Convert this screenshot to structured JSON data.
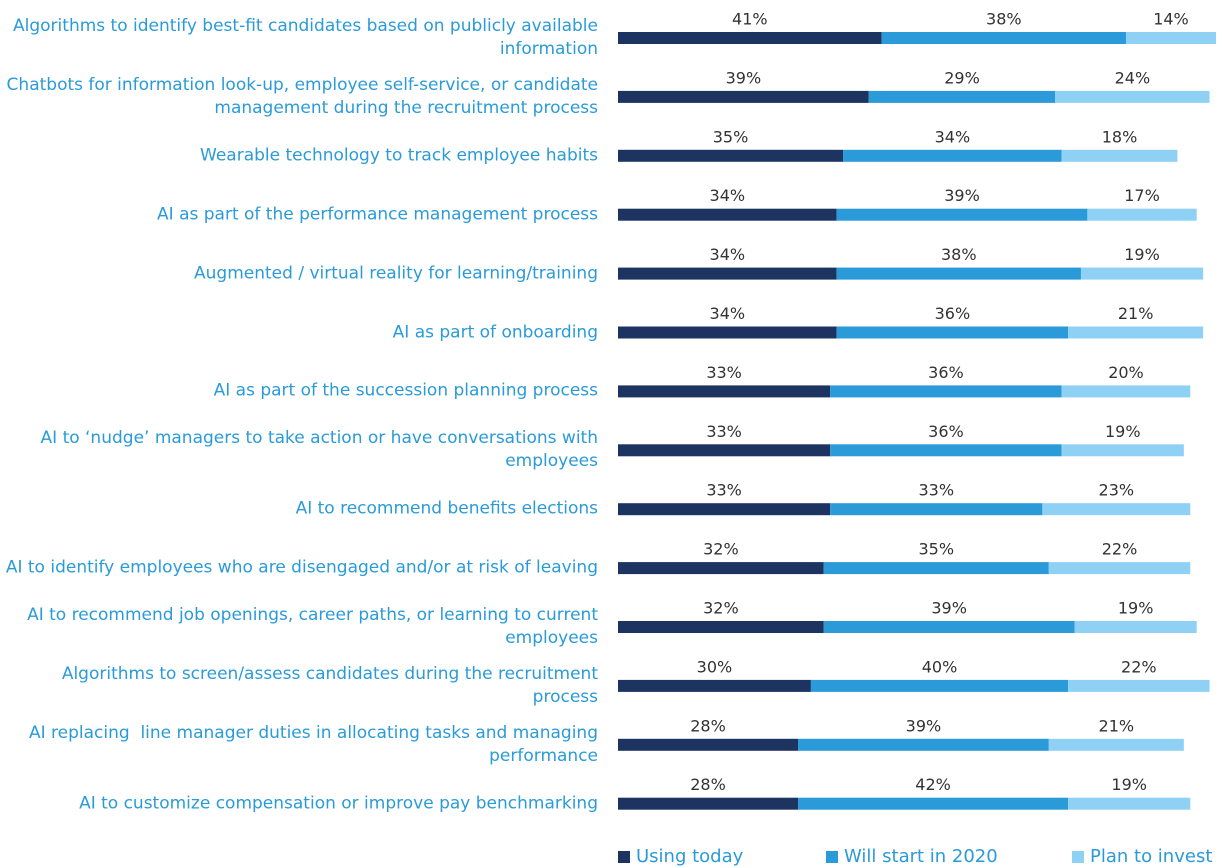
{
  "chart_data": {
    "type": "stacked-bar-horizontal",
    "categories": [
      "Algorithms to identify best-fit candidates based on publicly available information",
      "Chatbots for information look-up, employee self-service, or candidate management during the recruitment process",
      "Wearable technology to track employee habits",
      "AI as part of the performance management process",
      "Augmented / virtual reality for learning/training",
      "AI as part of onboarding",
      "AI as part of the succession planning process",
      "AI to ‘nudge’ managers to take action or have conversations with employees",
      "AI to recommend benefits elections",
      "AI to identify employees who are disengaged and/or at risk of leaving",
      "AI to recommend job openings, career paths, or learning to current employees",
      "Algorithms to screen/assess candidates during the recruitment process",
      "AI replacing  line manager duties in allocating tasks and managing performance",
      "AI to customize compensation or improve pay benchmarking"
    ],
    "series": [
      {
        "name": "Using today",
        "color": "#1d3461",
        "values": [
          41,
          39,
          35,
          34,
          34,
          34,
          33,
          33,
          33,
          32,
          32,
          30,
          28,
          28
        ],
        "value_labels": [
          "41%",
          "39%",
          "35%",
          "34%",
          "34%",
          "34%",
          "33%",
          "33%",
          "33%",
          "32%",
          "32%",
          "30%",
          "28%",
          "28%"
        ]
      },
      {
        "name": "Will start in 2020",
        "color": "#2a9bd8",
        "values": [
          38,
          29,
          34,
          39,
          38,
          36,
          36,
          36,
          33,
          35,
          39,
          40,
          39,
          42
        ],
        "value_labels": [
          "38%",
          "29%",
          "34%",
          "39%",
          "38%",
          "36%",
          "36%",
          "36%",
          "33%",
          "35%",
          "39%",
          "40%",
          "39%",
          "42%"
        ]
      },
      {
        "name": "Plan to invest",
        "color": "#8fd1f4",
        "values": [
          14,
          24,
          18,
          17,
          19,
          21,
          20,
          19,
          23,
          22,
          19,
          22,
          21,
          19
        ],
        "value_labels": [
          "14%",
          "24%",
          "18%",
          "17%",
          "19%",
          "21%",
          "20%",
          "19%",
          "23%",
          "22%",
          "19%",
          "22%",
          "21%",
          "19%"
        ]
      }
    ],
    "legend": "bottom"
  }
}
